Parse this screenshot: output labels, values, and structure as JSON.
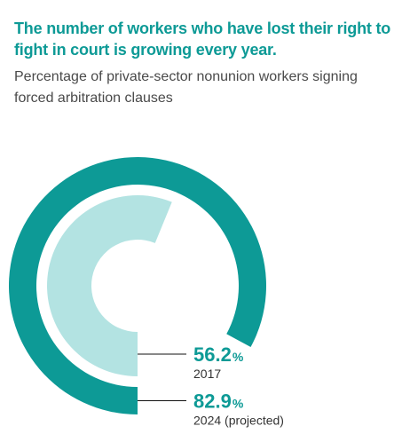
{
  "title": "The number of workers who have lost their right to fight in court is growing every year.",
  "subtitle": "Percentage of private-sector nonunion workers signing forced arbitration clauses",
  "colors": {
    "title": "#0d9a96",
    "outer_ring": "#0d9a96",
    "inner_ring": "#b3e3e2",
    "value_text": "#0d9a96",
    "label_text": "#333333",
    "leader_line": "#111111"
  },
  "chart_data": {
    "type": "radial-bar",
    "unit": "%",
    "max": 100,
    "series": [
      {
        "category": "2017",
        "value": 56.2,
        "value_label": "56.2",
        "ring": "inner",
        "color": "#b3e3e2"
      },
      {
        "category": "2024 (projected)",
        "value": 82.9,
        "value_label": "82.9",
        "ring": "outer",
        "color": "#0d9a96"
      }
    ]
  }
}
